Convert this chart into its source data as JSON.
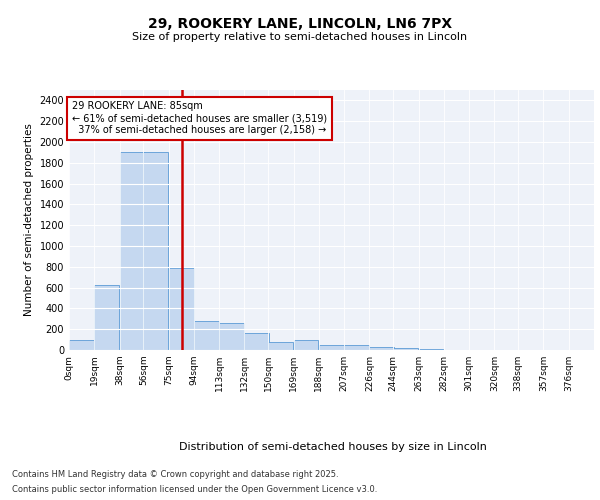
{
  "title": "29, ROOKERY LANE, LINCOLN, LN6 7PX",
  "subtitle": "Size of property relative to semi-detached houses in Lincoln",
  "xlabel": "Distribution of semi-detached houses by size in Lincoln",
  "ylabel": "Number of semi-detached properties",
  "bar_color": "#c5d8f0",
  "bar_edge_color": "#5b9bd5",
  "background_color": "#eef2f9",
  "grid_color": "#ffffff",
  "annotation_box_color": "#cc0000",
  "vline_color": "#cc0000",
  "property_sqm": 85,
  "property_label": "29 ROOKERY LANE: 85sqm",
  "pct_smaller": 61,
  "count_smaller": 3519,
  "pct_larger": 37,
  "count_larger": 2158,
  "bin_labels": [
    "0sqm",
    "19sqm",
    "38sqm",
    "56sqm",
    "75sqm",
    "94sqm",
    "113sqm",
    "132sqm",
    "150sqm",
    "169sqm",
    "188sqm",
    "207sqm",
    "226sqm",
    "244sqm",
    "263sqm",
    "282sqm",
    "301sqm",
    "320sqm",
    "338sqm",
    "357sqm",
    "376sqm"
  ],
  "bin_edges": [
    0,
    19,
    38,
    56,
    75,
    94,
    113,
    132,
    150,
    169,
    188,
    207,
    226,
    244,
    263,
    282,
    301,
    320,
    338,
    357,
    376
  ],
  "bar_heights": [
    100,
    625,
    1900,
    1900,
    790,
    280,
    260,
    160,
    75,
    100,
    50,
    50,
    30,
    20,
    5,
    2,
    1,
    0,
    0,
    0,
    0
  ],
  "ylim": [
    0,
    2500
  ],
  "yticks": [
    0,
    200,
    400,
    600,
    800,
    1000,
    1200,
    1400,
    1600,
    1800,
    2000,
    2200,
    2400
  ],
  "footer_line1": "Contains HM Land Registry data © Crown copyright and database right 2025.",
  "footer_line2": "Contains public sector information licensed under the Open Government Licence v3.0."
}
